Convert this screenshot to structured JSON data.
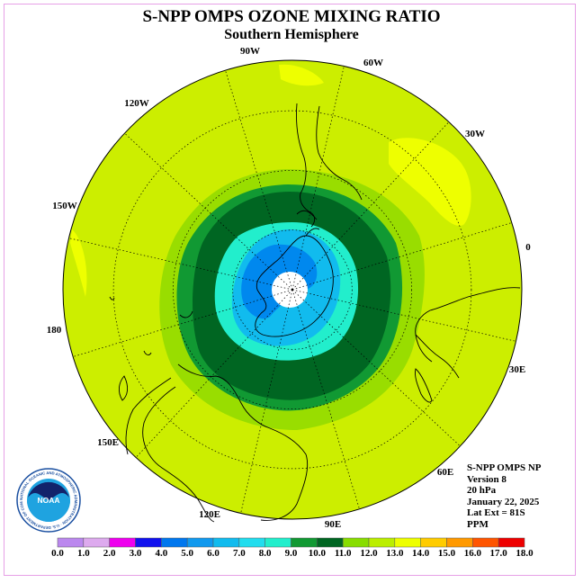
{
  "title": "S-NPP OMPS OZONE MIXING RATIO",
  "subtitle": "Southern Hemisphere",
  "longitude_labels": [
    "90W",
    "60W",
    "30W",
    "0",
    "30E",
    "60E",
    "90E",
    "120E",
    "150E",
    "180",
    "150W",
    "120W"
  ],
  "info": {
    "line1": "S-NPP OMPS NP",
    "line2": "Version 8",
    "line3": "20 hPa",
    "line4": "January 22, 2025",
    "line5": "Lat Ext = 81S",
    "line6": "PPM"
  },
  "logo": {
    "text": "NOAA",
    "ring_text": "NATIONAL OCEANIC AND ATMOSPHERIC ADMINISTRATION · U.S. DEPARTMENT OF COMMERCE"
  },
  "colorbar": {
    "ticks": [
      "0.0",
      "1.0",
      "2.0",
      "3.0",
      "4.0",
      "5.0",
      "6.0",
      "7.0",
      "8.0",
      "9.0",
      "10.0",
      "11.0",
      "12.0",
      "13.0",
      "14.0",
      "15.0",
      "16.0",
      "17.0",
      "18.0"
    ],
    "colors": [
      "#bb88ee",
      "#ddaaee",
      "#ee00ee",
      "#1111ee",
      "#0077ee",
      "#1199ee",
      "#11bbee",
      "#22ddee",
      "#22eecc",
      "#119933",
      "#006622",
      "#88dd00",
      "#bbee00",
      "#eeff00",
      "#ffcc00",
      "#ff9900",
      "#ff5500",
      "#ee0000",
      "#885533"
    ]
  },
  "field_colors": {
    "ocean_bg": "#ccee00",
    "yellow_patch": "#eeff00",
    "ring_11": "#99dd00",
    "ring_10": "#119933",
    "ring_9": "#006622",
    "ring_8": "#22eecc",
    "ring_7": "#11bbee",
    "ring_6": "#0088ee",
    "pole_hole": "#ffffff"
  }
}
